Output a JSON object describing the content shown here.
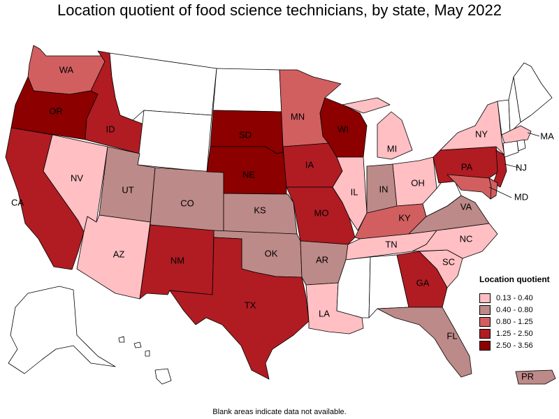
{
  "title": "Location quotient of food science technicians, by state, May 2022",
  "footnote": "Blank areas indicate data not available.",
  "legend": {
    "title": "Location quotient",
    "items": [
      {
        "label": "0.13 - 0.40",
        "color": "#ffbfc3"
      },
      {
        "label": "0.40 - 0.80",
        "color": "#bc8a88"
      },
      {
        "label": "0.80 - 1.25",
        "color": "#d25f60"
      },
      {
        "label": "1.25 - 2.50",
        "color": "#b01c22"
      },
      {
        "label": "2.50 - 3.56",
        "color": "#8c0000"
      }
    ]
  },
  "nodata_color": "#ffffff",
  "states": {
    "WA": {
      "label": "WA",
      "cls": 3
    },
    "OR": {
      "label": "OR",
      "cls": 5
    },
    "CA": {
      "label": "CA",
      "cls": 4
    },
    "NV": {
      "label": "NV",
      "cls": 1
    },
    "ID": {
      "label": "ID",
      "cls": 4
    },
    "MT": {
      "label": "",
      "cls": 0
    },
    "WY": {
      "label": "",
      "cls": 0
    },
    "UT": {
      "label": "UT",
      "cls": 2
    },
    "AZ": {
      "label": "AZ",
      "cls": 1
    },
    "CO": {
      "label": "CO",
      "cls": 2
    },
    "NM": {
      "label": "NM",
      "cls": 4
    },
    "ND": {
      "label": "",
      "cls": 0
    },
    "SD": {
      "label": "SD",
      "cls": 5
    },
    "NE": {
      "label": "NE",
      "cls": 5
    },
    "KS": {
      "label": "KS",
      "cls": 2
    },
    "OK": {
      "label": "OK",
      "cls": 2
    },
    "TX": {
      "label": "TX",
      "cls": 4
    },
    "MN": {
      "label": "MN",
      "cls": 3
    },
    "IA": {
      "label": "IA",
      "cls": 4
    },
    "MO": {
      "label": "MO",
      "cls": 4
    },
    "AR": {
      "label": "AR",
      "cls": 2
    },
    "LA": {
      "label": "LA",
      "cls": 1
    },
    "WI": {
      "label": "WI",
      "cls": 5
    },
    "IL": {
      "label": "IL",
      "cls": 1
    },
    "MI": {
      "label": "MI",
      "cls": 1
    },
    "IN": {
      "label": "IN",
      "cls": 2
    },
    "OH": {
      "label": "OH",
      "cls": 1
    },
    "KY": {
      "label": "KY",
      "cls": 3
    },
    "TN": {
      "label": "TN",
      "cls": 1
    },
    "MS": {
      "label": "",
      "cls": 0
    },
    "AL": {
      "label": "",
      "cls": 0
    },
    "GA": {
      "label": "GA",
      "cls": 4
    },
    "FL": {
      "label": "FL",
      "cls": 2
    },
    "SC": {
      "label": "SC",
      "cls": 1
    },
    "NC": {
      "label": "NC",
      "cls": 1
    },
    "VA": {
      "label": "VA",
      "cls": 2
    },
    "WV": {
      "label": "",
      "cls": 0
    },
    "PA": {
      "label": "PA",
      "cls": 4
    },
    "NY": {
      "label": "NY",
      "cls": 1
    },
    "NJ": {
      "label": "NJ",
      "cls": 4
    },
    "MD": {
      "label": "MD",
      "cls": 3
    },
    "DE": {
      "label": "",
      "cls": 3
    },
    "VT": {
      "label": "",
      "cls": 0
    },
    "NH": {
      "label": "",
      "cls": 0
    },
    "ME": {
      "label": "",
      "cls": 0
    },
    "MA": {
      "label": "MA",
      "cls": 1
    },
    "CT": {
      "label": "",
      "cls": 0
    },
    "RI": {
      "label": "",
      "cls": 0
    },
    "AK": {
      "label": "",
      "cls": 0
    },
    "HI": {
      "label": "",
      "cls": 0
    },
    "PR": {
      "label": "PR",
      "cls": 2
    }
  }
}
